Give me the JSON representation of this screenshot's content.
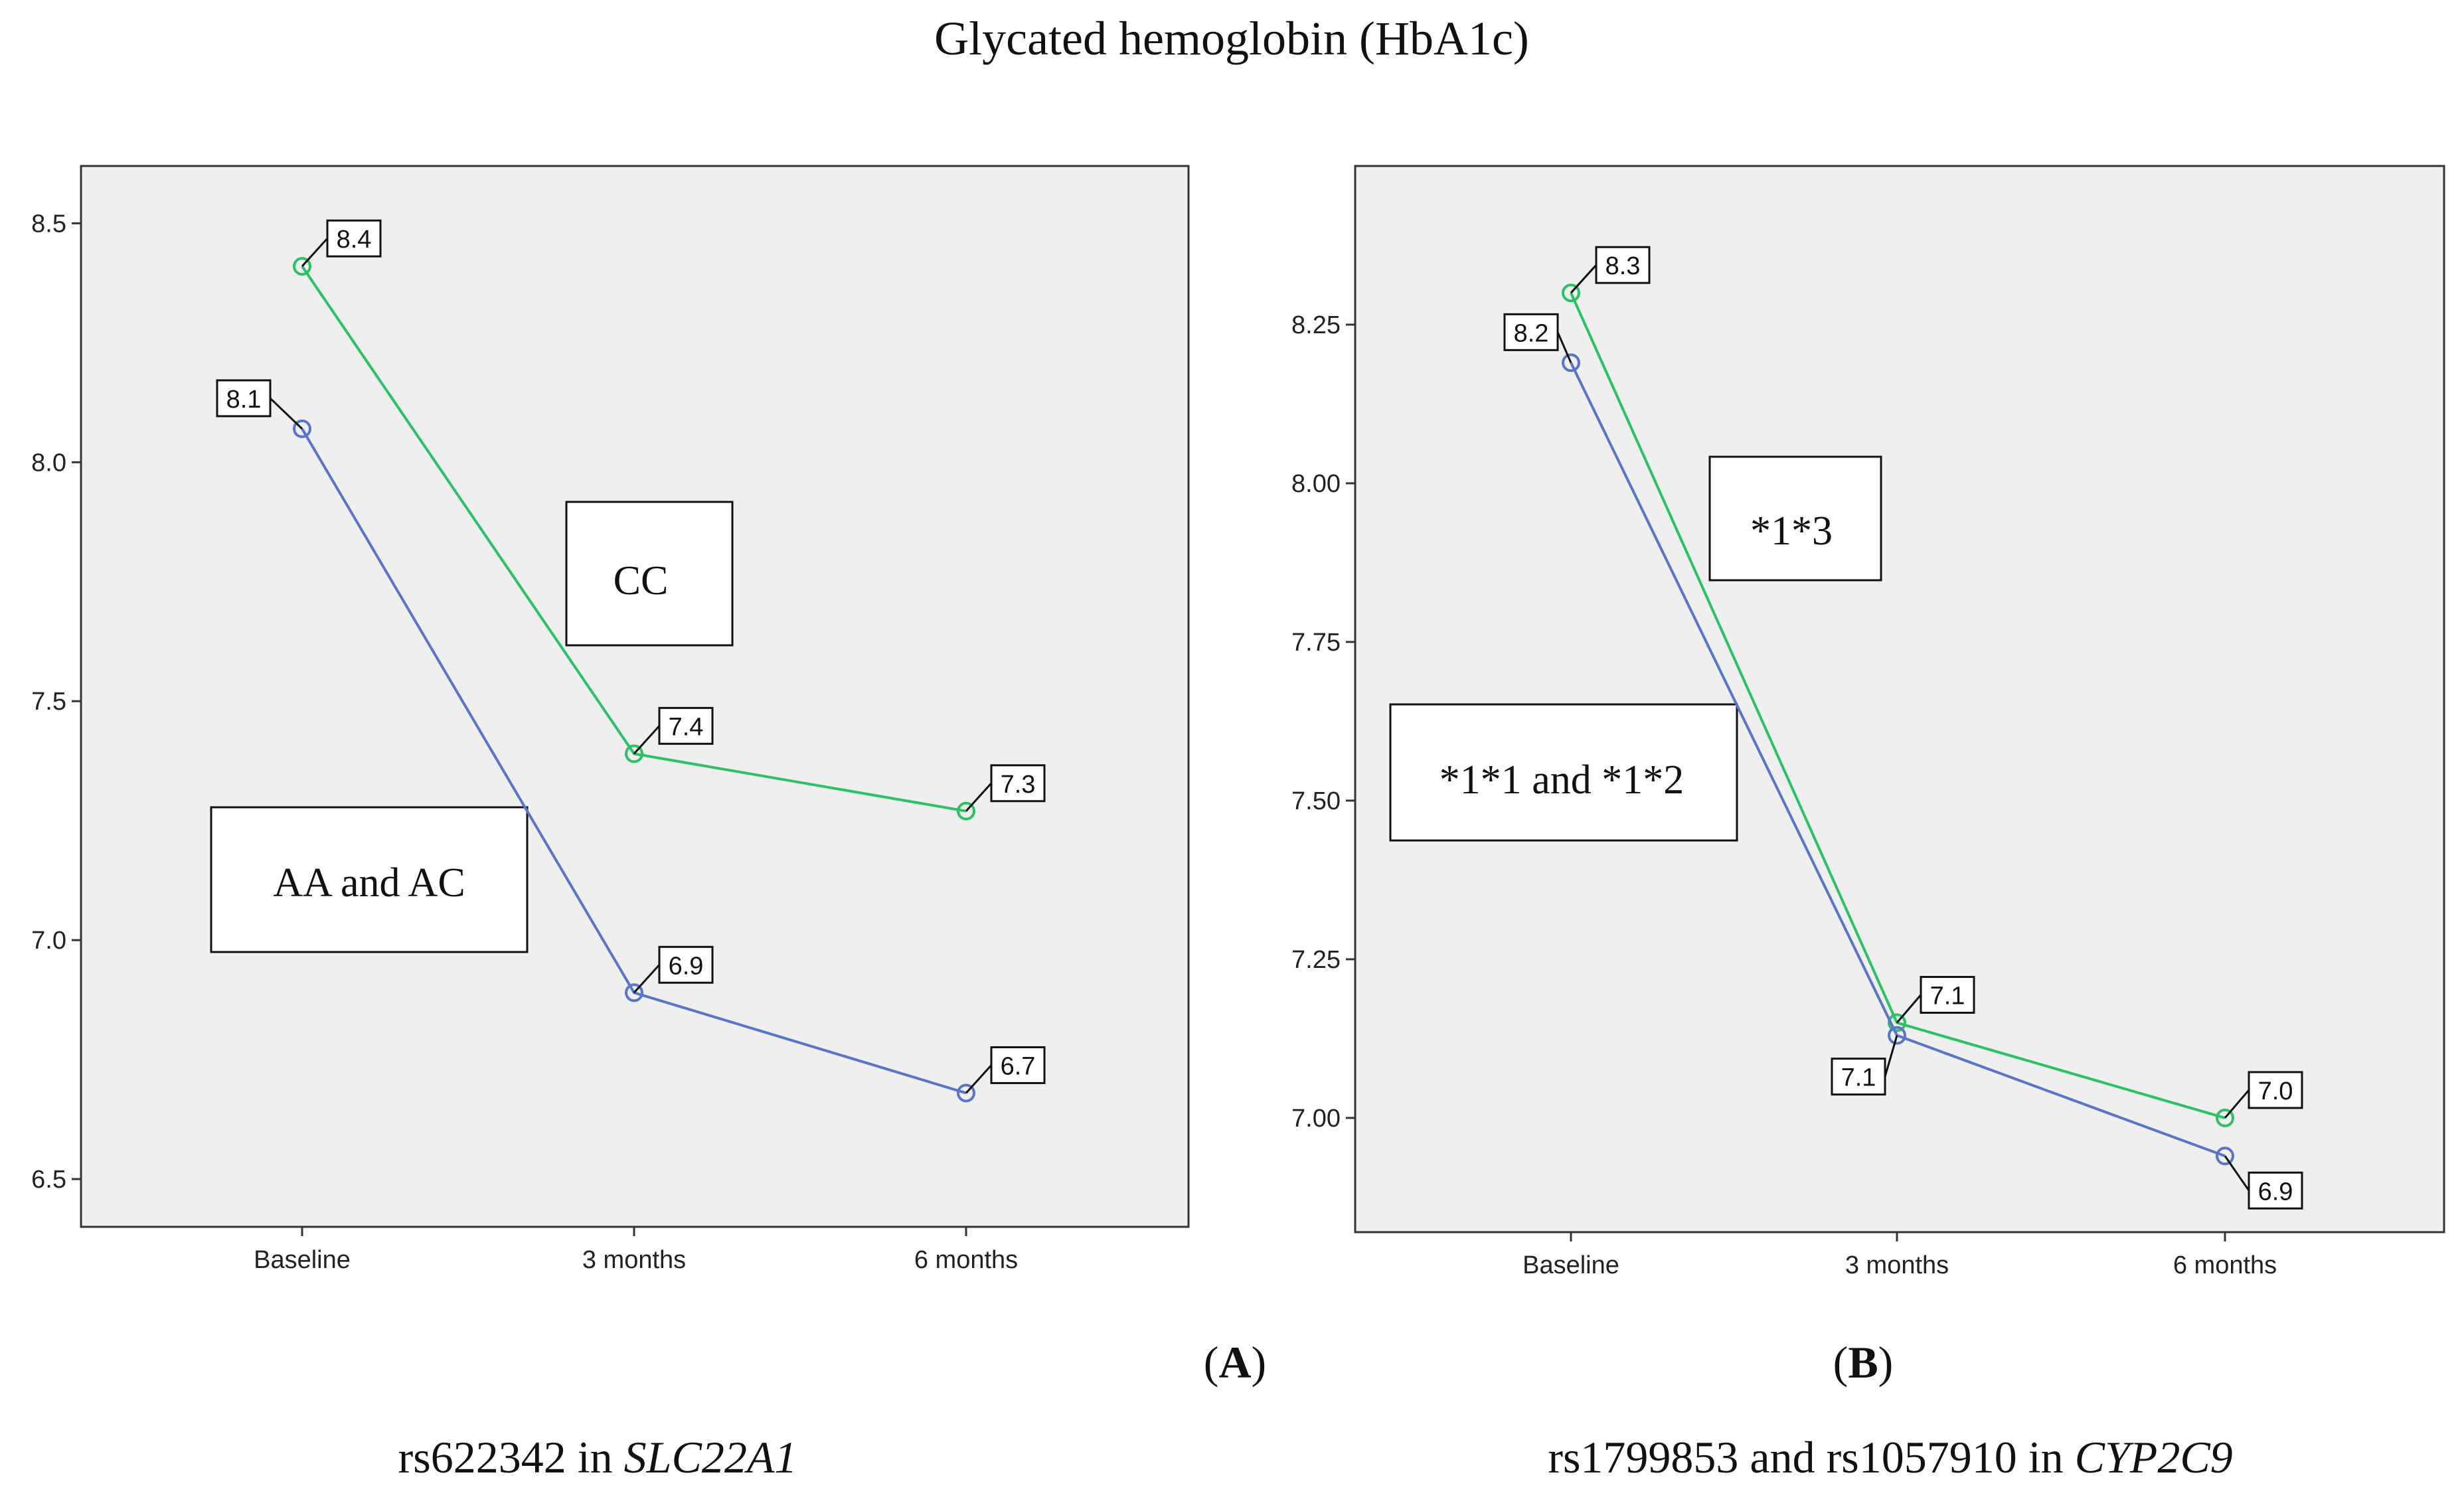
{
  "figure_title": "Glycated hemoglobin (HbA1c)",
  "colors": {
    "series_green": "#2cc165",
    "series_blue": "#5a74c9",
    "plot_bg": "#efefef",
    "frame": "#333333"
  },
  "panels": [
    {
      "label": "A",
      "caption_prefix": "rs622342 in ",
      "caption_gene": "SLC22A1",
      "annotations": [
        "CC",
        "AA and AC"
      ]
    },
    {
      "label": "B",
      "caption_prefix": "rs1799853 and rs1057910 in ",
      "caption_gene": "CYP2C9",
      "annotations": [
        "*1*3",
        "*1*1 and *1*2"
      ]
    }
  ],
  "chart_data": [
    {
      "type": "line",
      "title": "",
      "xlabel": "",
      "ylabel": "",
      "categories": [
        "Baseline",
        "3 months",
        "6 months"
      ],
      "ylim": [
        6.4,
        8.62
      ],
      "yticks": [
        "6.5",
        "7.0",
        "7.5",
        "8.0",
        "8.5"
      ],
      "grid": false,
      "series": [
        {
          "color": "#2cc165",
          "values": [
            8.41,
            7.39,
            7.27
          ],
          "labels": [
            "8.4",
            "7.4",
            "7.3"
          ]
        },
        {
          "color": "#5a74c9",
          "values": [
            8.07,
            6.89,
            6.68
          ],
          "labels": [
            "8.1",
            "6.9",
            "6.7"
          ]
        }
      ]
    },
    {
      "type": "line",
      "title": "",
      "xlabel": "",
      "ylabel": "",
      "categories": [
        "Baseline",
        "3 months",
        "6 months"
      ],
      "ylim": [
        6.82,
        8.5
      ],
      "yticks": [
        "7.00",
        "7.25",
        "7.50",
        "7.75",
        "8.00",
        "8.25"
      ],
      "grid": false,
      "series": [
        {
          "color": "#2cc165",
          "values": [
            8.3,
            7.15,
            7.0
          ],
          "labels": [
            "8.3",
            "7.1",
            "7.0"
          ]
        },
        {
          "color": "#5a74c9",
          "values": [
            8.19,
            7.13,
            6.94
          ],
          "labels": [
            "8.2",
            "7.1",
            "6.9"
          ]
        }
      ]
    }
  ]
}
